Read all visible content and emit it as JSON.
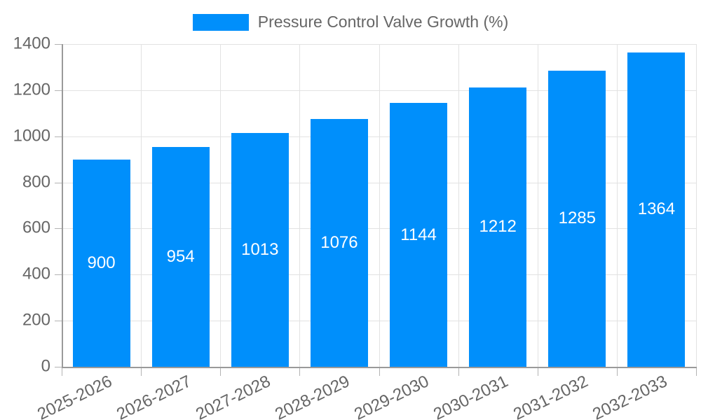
{
  "chart_data": {
    "type": "bar",
    "title": "Pressure Control Valve Growth (%)",
    "categories": [
      "2025-2026",
      "2026-2027",
      "2027-2028",
      "2028-2029",
      "2029-2030",
      "2030-2031",
      "2031-2032",
      "2032-2033"
    ],
    "values": [
      900,
      954,
      1013,
      1076,
      1144,
      1212,
      1285,
      1364
    ],
    "xlabel": "",
    "ylabel": "",
    "ylim": [
      0,
      1400
    ],
    "yticks": [
      0,
      200,
      400,
      600,
      800,
      1000,
      1200,
      1400
    ],
    "grid": true,
    "legend_position": "top-center",
    "bar_labels_inside": true,
    "colors": {
      "bar": "#008FFB",
      "bar_value_label": "#FFFFFF",
      "axis_text": "#666666",
      "gridline": "#E2E2E2",
      "tick": "#B3B3B3",
      "axis_line": "#9A9A9A",
      "background": "#FFFFFF"
    }
  }
}
